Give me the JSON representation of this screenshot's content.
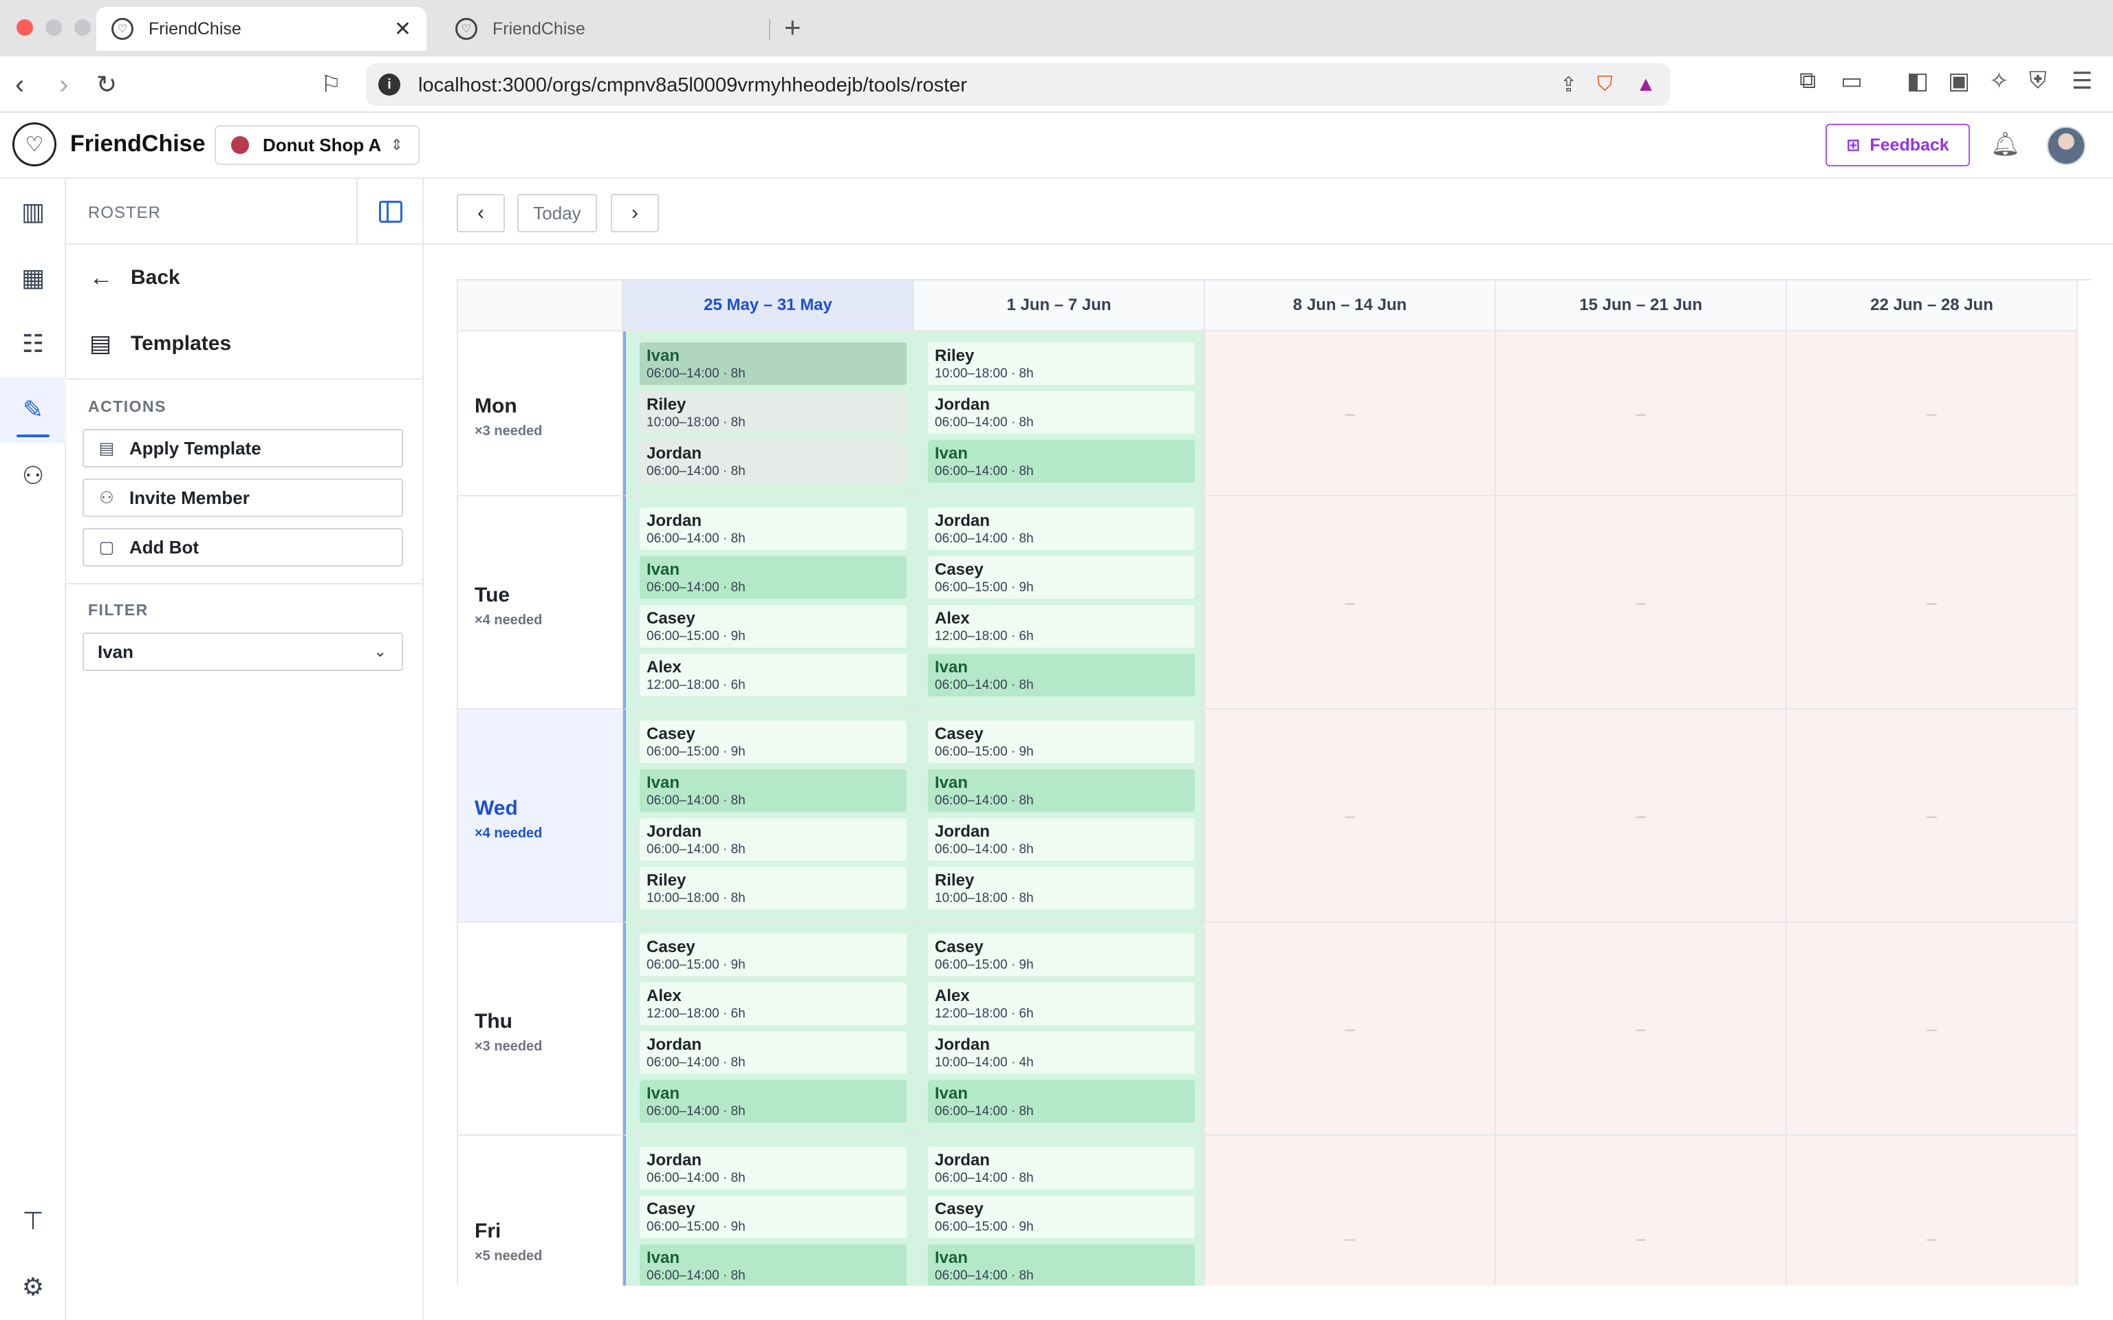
{
  "browser": {
    "tabs": [
      {
        "title": "FriendChise",
        "active": true
      },
      {
        "title": "FriendChise",
        "active": false
      }
    ],
    "url": "localhost:3000/orgs/cmpnv8a5l0009vrmyhheodejb/tools/roster"
  },
  "header": {
    "brand": "FriendChise",
    "org_name": "Donut Shop A",
    "feedback_label": "Feedback"
  },
  "sidebar": {
    "section_title": "ROSTER",
    "back_label": "Back",
    "templates_label": "Templates",
    "actions_title": "ACTIONS",
    "actions": [
      {
        "label": "Apply Template",
        "icon": "template-icon"
      },
      {
        "label": "Invite Member",
        "icon": "user-plus-icon"
      },
      {
        "label": "Add Bot",
        "icon": "bot-icon"
      }
    ],
    "filter_title": "FILTER",
    "filter_value": "Ivan"
  },
  "toolbar": {
    "today_label": "Today"
  },
  "weeks": [
    "25 May – 31 May",
    "1 Jun – 7 Jun",
    "8 Jun – 14 Jun",
    "15 Jun – 21 Jun",
    "22 Jun – 28 Jun"
  ],
  "empty_marker": "–",
  "days": [
    {
      "name": "Mon",
      "needed": "×3 needed",
      "today": false,
      "past": true,
      "week1": [
        {
          "name": "Ivan",
          "time": "06:00–14:00 · 8h",
          "highlight": true
        },
        {
          "name": "Riley",
          "time": "10:00–18:00 · 8h",
          "highlight": false
        },
        {
          "name": "Jordan",
          "time": "06:00–14:00 · 8h",
          "highlight": false
        }
      ],
      "week2": [
        {
          "name": "Riley",
          "time": "10:00–18:00 · 8h",
          "highlight": false
        },
        {
          "name": "Jordan",
          "time": "06:00–14:00 · 8h",
          "highlight": false
        },
        {
          "name": "Ivan",
          "time": "06:00–14:00 · 8h",
          "highlight": true
        }
      ]
    },
    {
      "name": "Tue",
      "needed": "×4 needed",
      "today": false,
      "past": false,
      "week1": [
        {
          "name": "Jordan",
          "time": "06:00–14:00 · 8h",
          "highlight": false
        },
        {
          "name": "Ivan",
          "time": "06:00–14:00 · 8h",
          "highlight": true
        },
        {
          "name": "Casey",
          "time": "06:00–15:00 · 9h",
          "highlight": false
        },
        {
          "name": "Alex",
          "time": "12:00–18:00 · 6h",
          "highlight": false
        }
      ],
      "week2": [
        {
          "name": "Jordan",
          "time": "06:00–14:00 · 8h",
          "highlight": false
        },
        {
          "name": "Casey",
          "time": "06:00–15:00 · 9h",
          "highlight": false
        },
        {
          "name": "Alex",
          "time": "12:00–18:00 · 6h",
          "highlight": false
        },
        {
          "name": "Ivan",
          "time": "06:00–14:00 · 8h",
          "highlight": true
        }
      ]
    },
    {
      "name": "Wed",
      "needed": "×4 needed",
      "today": true,
      "past": false,
      "week1": [
        {
          "name": "Casey",
          "time": "06:00–15:00 · 9h",
          "highlight": false
        },
        {
          "name": "Ivan",
          "time": "06:00–14:00 · 8h",
          "highlight": true
        },
        {
          "name": "Jordan",
          "time": "06:00–14:00 · 8h",
          "highlight": false
        },
        {
          "name": "Riley",
          "time": "10:00–18:00 · 8h",
          "highlight": false
        }
      ],
      "week2": [
        {
          "name": "Casey",
          "time": "06:00–15:00 · 9h",
          "highlight": false
        },
        {
          "name": "Ivan",
          "time": "06:00–14:00 · 8h",
          "highlight": true
        },
        {
          "name": "Jordan",
          "time": "06:00–14:00 · 8h",
          "highlight": false
        },
        {
          "name": "Riley",
          "time": "10:00–18:00 · 8h",
          "highlight": false
        }
      ]
    },
    {
      "name": "Thu",
      "needed": "×3 needed",
      "today": false,
      "past": false,
      "week1": [
        {
          "name": "Casey",
          "time": "06:00–15:00 · 9h",
          "highlight": false
        },
        {
          "name": "Alex",
          "time": "12:00–18:00 · 6h",
          "highlight": false
        },
        {
          "name": "Jordan",
          "time": "06:00–14:00 · 8h",
          "highlight": false
        },
        {
          "name": "Ivan",
          "time": "06:00–14:00 · 8h",
          "highlight": true
        }
      ],
      "week2": [
        {
          "name": "Casey",
          "time": "06:00–15:00 · 9h",
          "highlight": false
        },
        {
          "name": "Alex",
          "time": "12:00–18:00 · 6h",
          "highlight": false
        },
        {
          "name": "Jordan",
          "time": "10:00–14:00 · 4h",
          "highlight": false
        },
        {
          "name": "Ivan",
          "time": "06:00–14:00 · 8h",
          "highlight": true
        }
      ]
    },
    {
      "name": "Fri",
      "needed": "×5 needed",
      "today": false,
      "past": false,
      "week1": [
        {
          "name": "Jordan",
          "time": "06:00–14:00 · 8h",
          "highlight": false
        },
        {
          "name": "Casey",
          "time": "06:00–15:00 · 9h",
          "highlight": false
        },
        {
          "name": "Ivan",
          "time": "06:00–14:00 · 8h",
          "highlight": true
        }
      ],
      "week2": [
        {
          "name": "Jordan",
          "time": "06:00–14:00 · 8h",
          "highlight": false
        },
        {
          "name": "Casey",
          "time": "06:00–15:00 · 9h",
          "highlight": false
        },
        {
          "name": "Ivan",
          "time": "06:00–14:00 · 8h",
          "highlight": true
        }
      ]
    }
  ],
  "colors": {
    "accent": "#2563eb",
    "feedback": "#9333ea",
    "filled": "#d4f3e0",
    "empty": "#fbf1f0",
    "highlight": "#b4e8c8"
  }
}
